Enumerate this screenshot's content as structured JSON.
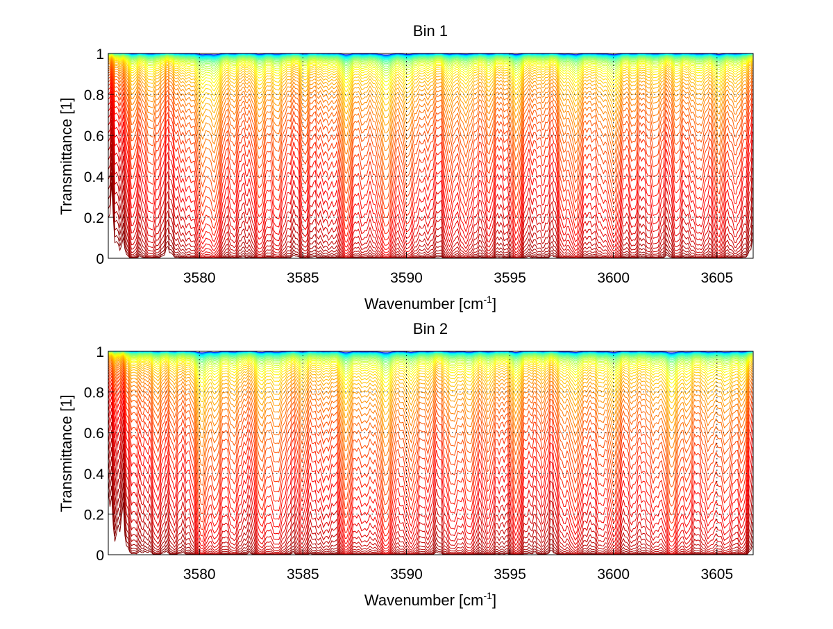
{
  "chart_data": [
    {
      "type": "line",
      "title": "Bin 1",
      "xlabel": "Wavenumber [cm",
      "xlabel_sup": "-1",
      "xlabel_end": "]",
      "ylabel": "Transmittance [1]",
      "xlim": [
        3575.6,
        3606.75
      ],
      "ylim": [
        0,
        1
      ],
      "xticks": [
        3580,
        3585,
        3590,
        3595,
        3600,
        3605
      ],
      "xtick_labels": [
        "3580",
        "3585",
        "3590",
        "3595",
        "3600",
        "3605"
      ],
      "yticks": [
        0,
        0.2,
        0.4,
        0.6,
        0.8,
        1
      ],
      "ytick_labels": [
        "0",
        "0.2",
        "0.4",
        "0.6",
        "0.8",
        "1"
      ],
      "grid": true,
      "colormap": "jet",
      "series_count": 60,
      "series_description": "Family of transmittance spectra for increasing optical path; curves colored from dark blue (T≈1) through cyan, yellow, orange to red (T≈0)",
      "absorption_lines": [
        {
          "x": 3576.8,
          "depth": 0.7
        },
        {
          "x": 3577.7,
          "depth": 0.9
        },
        {
          "x": 3579.2,
          "depth": 0.5
        },
        {
          "x": 3580.1,
          "depth": 1.2
        },
        {
          "x": 3580.7,
          "depth": 1.6
        },
        {
          "x": 3581.7,
          "depth": 0.6
        },
        {
          "x": 3582.9,
          "depth": 1.1
        },
        {
          "x": 3583.8,
          "depth": 1.0
        },
        {
          "x": 3585.1,
          "depth": 0.7
        },
        {
          "x": 3586.1,
          "depth": 0.5
        },
        {
          "x": 3587.1,
          "depth": 1.7
        },
        {
          "x": 3588.0,
          "depth": 0.6
        },
        {
          "x": 3589.0,
          "depth": 2.0
        },
        {
          "x": 3590.1,
          "depth": 1.3
        },
        {
          "x": 3591.0,
          "depth": 0.6
        },
        {
          "x": 3592.1,
          "depth": 0.9
        },
        {
          "x": 3592.9,
          "depth": 1.1
        },
        {
          "x": 3594.0,
          "depth": 0.8
        },
        {
          "x": 3595.3,
          "depth": 1.4
        },
        {
          "x": 3596.5,
          "depth": 0.5
        },
        {
          "x": 3597.6,
          "depth": 0.8
        },
        {
          "x": 3598.2,
          "depth": 1.3
        },
        {
          "x": 3599.3,
          "depth": 0.6
        },
        {
          "x": 3600.0,
          "depth": 1.5
        },
        {
          "x": 3601.0,
          "depth": 0.6
        },
        {
          "x": 3602.0,
          "depth": 0.9
        },
        {
          "x": 3603.1,
          "depth": 0.7
        },
        {
          "x": 3604.1,
          "depth": 0.9
        },
        {
          "x": 3605.1,
          "depth": 1.2
        },
        {
          "x": 3606.0,
          "depth": 0.8
        }
      ]
    },
    {
      "type": "line",
      "title": "Bin 2",
      "xlabel": "Wavenumber [cm",
      "xlabel_sup": "-1",
      "xlabel_end": "]",
      "ylabel": "Transmittance [1]",
      "xlim": [
        3575.6,
        3606.75
      ],
      "ylim": [
        0,
        1
      ],
      "xticks": [
        3580,
        3585,
        3590,
        3595,
        3600,
        3605
      ],
      "xtick_labels": [
        "3580",
        "3585",
        "3590",
        "3595",
        "3600",
        "3605"
      ],
      "yticks": [
        0,
        0.2,
        0.4,
        0.6,
        0.8,
        1
      ],
      "ytick_labels": [
        "0",
        "0.2",
        "0.4",
        "0.6",
        "0.8",
        "1"
      ],
      "grid": true,
      "colormap": "jet",
      "series_count": 60,
      "series_description": "Family of transmittance spectra for increasing optical path; curves colored from dark blue (T≈1) through cyan, yellow, orange to red (T≈0)",
      "absorption_lines": [
        {
          "x": 3576.9,
          "depth": 0.5
        },
        {
          "x": 3577.9,
          "depth": 0.6
        },
        {
          "x": 3578.8,
          "depth": 0.5
        },
        {
          "x": 3580.1,
          "depth": 1.8
        },
        {
          "x": 3580.8,
          "depth": 1.0
        },
        {
          "x": 3581.7,
          "depth": 0.9
        },
        {
          "x": 3583.0,
          "depth": 1.2
        },
        {
          "x": 3583.8,
          "depth": 1.1
        },
        {
          "x": 3585.0,
          "depth": 0.8
        },
        {
          "x": 3586.0,
          "depth": 0.6
        },
        {
          "x": 3587.1,
          "depth": 1.7
        },
        {
          "x": 3588.0,
          "depth": 0.7
        },
        {
          "x": 3589.0,
          "depth": 1.9
        },
        {
          "x": 3590.2,
          "depth": 1.2
        },
        {
          "x": 3591.0,
          "depth": 0.6
        },
        {
          "x": 3592.2,
          "depth": 1.0
        },
        {
          "x": 3593.0,
          "depth": 1.1
        },
        {
          "x": 3594.0,
          "depth": 0.8
        },
        {
          "x": 3595.3,
          "depth": 1.3
        },
        {
          "x": 3596.5,
          "depth": 0.5
        },
        {
          "x": 3597.6,
          "depth": 0.7
        },
        {
          "x": 3598.2,
          "depth": 1.2
        },
        {
          "x": 3599.3,
          "depth": 0.6
        },
        {
          "x": 3600.0,
          "depth": 1.3
        },
        {
          "x": 3601.0,
          "depth": 0.6
        },
        {
          "x": 3601.9,
          "depth": 0.8
        },
        {
          "x": 3602.8,
          "depth": 1.9
        },
        {
          "x": 3603.6,
          "depth": 0.8
        },
        {
          "x": 3604.6,
          "depth": 1.0
        },
        {
          "x": 3605.4,
          "depth": 1.1
        },
        {
          "x": 3606.2,
          "depth": 0.9
        }
      ]
    }
  ]
}
